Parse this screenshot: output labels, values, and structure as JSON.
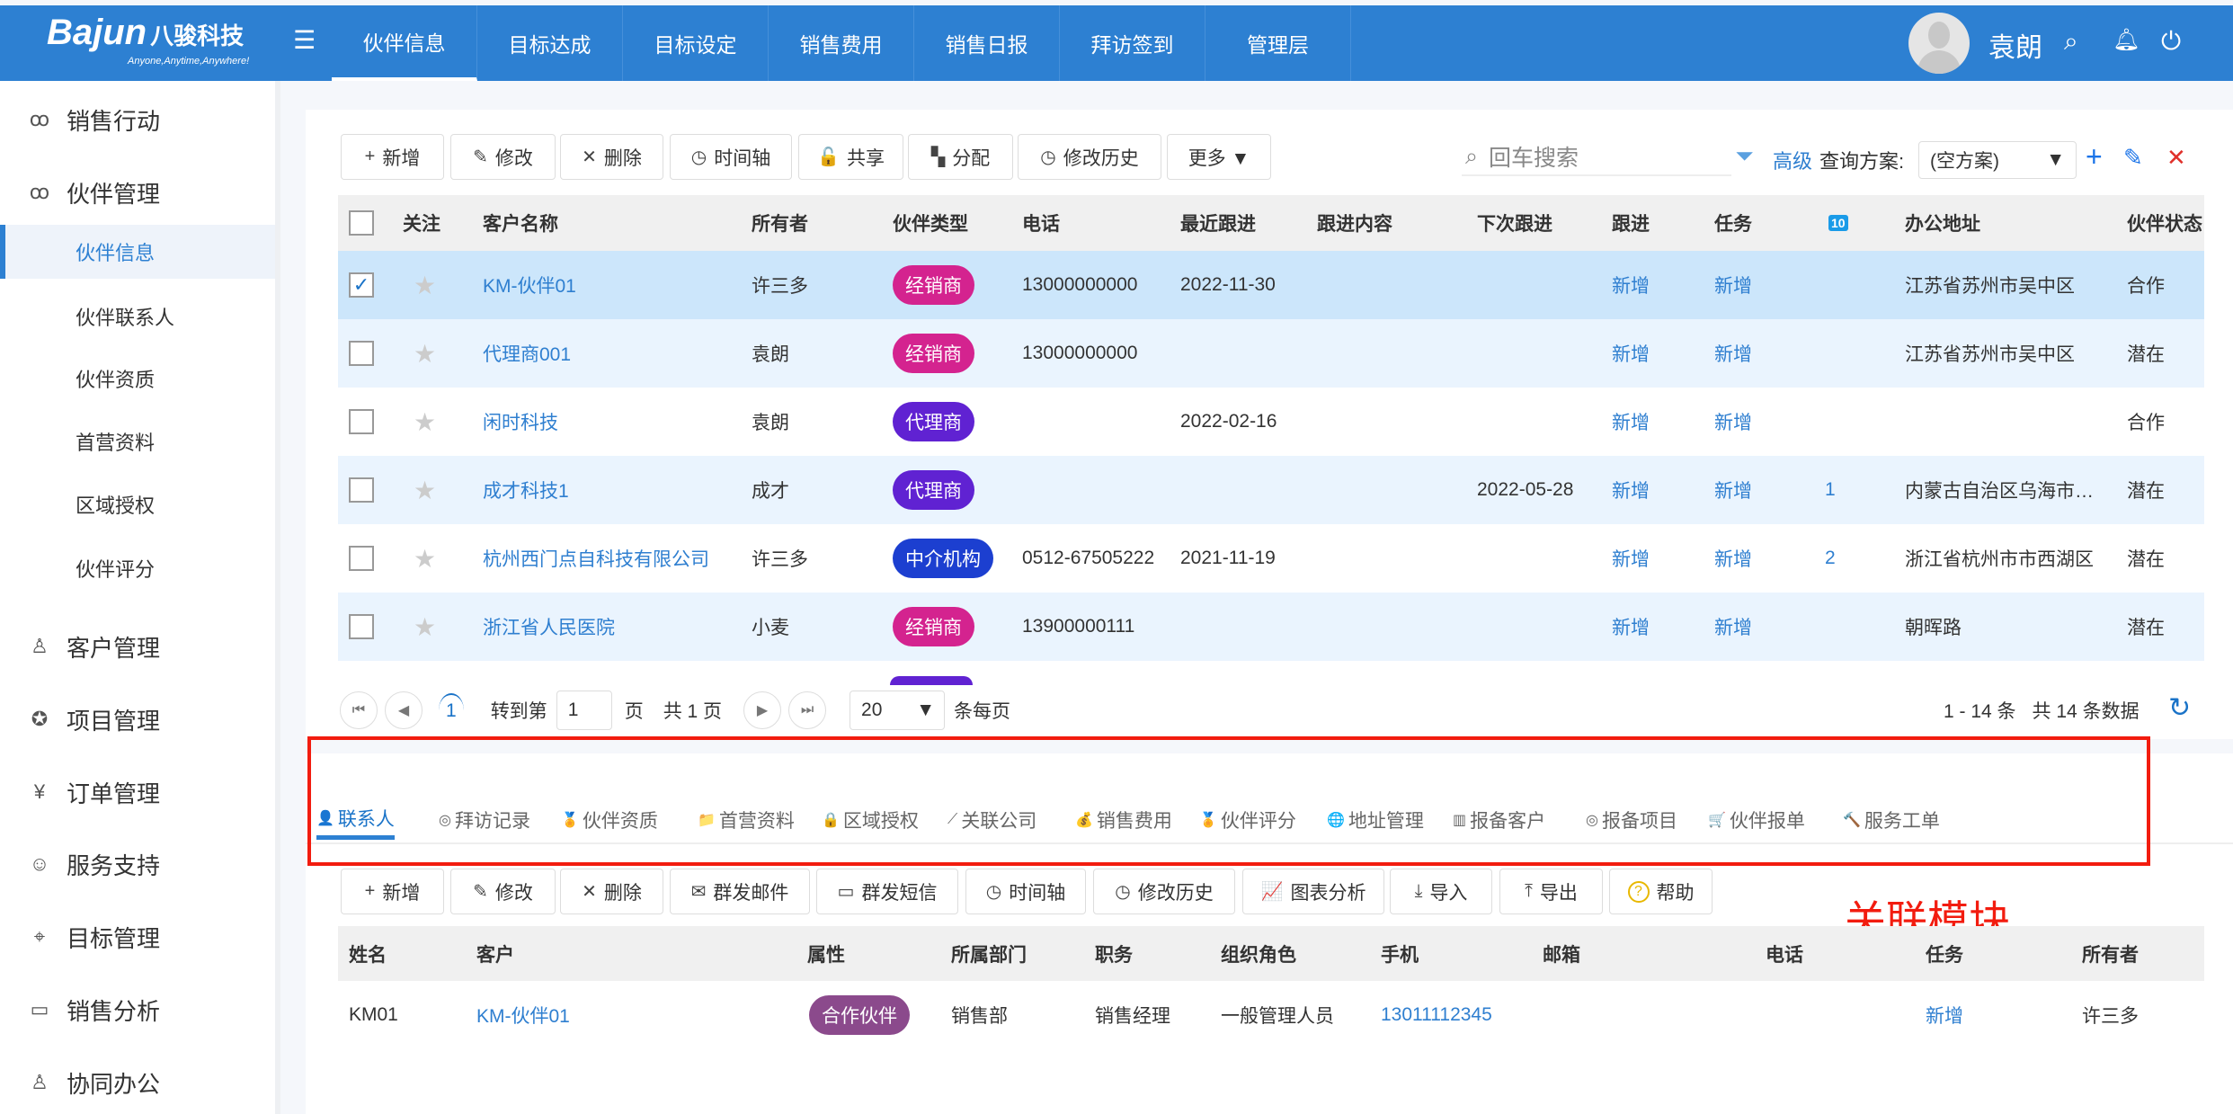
{
  "header": {
    "logo": "Bajun",
    "logo_cn": "八骏科技",
    "tagline": "Anyone,Anytime,Anywhere!",
    "user": "袁朗",
    "tabs": [
      "伙伴信息",
      "目标达成",
      "目标设定",
      "销售费用",
      "销售日报",
      "拜访签到",
      "管理层"
    ],
    "active_tab": 0
  },
  "sidebar": {
    "items": [
      {
        "label": "销售行动",
        "icon": "users-icon",
        "type": "group"
      },
      {
        "label": "伙伴管理",
        "icon": "partners-icon",
        "type": "group"
      },
      {
        "label": "伙伴信息",
        "type": "sub",
        "active": true
      },
      {
        "label": "伙伴联系人",
        "type": "sub"
      },
      {
        "label": "伙伴资质",
        "type": "sub"
      },
      {
        "label": "首营资料",
        "type": "sub"
      },
      {
        "label": "区域授权",
        "type": "sub"
      },
      {
        "label": "伙伴评分",
        "type": "sub"
      },
      {
        "label": "客户管理",
        "icon": "user-icon",
        "type": "group"
      },
      {
        "label": "项目管理",
        "icon": "award-icon",
        "type": "group"
      },
      {
        "label": "订单管理",
        "icon": "yen-icon",
        "type": "group"
      },
      {
        "label": "服务支持",
        "icon": "support-icon",
        "type": "group"
      },
      {
        "label": "目标管理",
        "icon": "target-icon",
        "type": "group"
      },
      {
        "label": "销售分析",
        "icon": "monitor-icon",
        "type": "group"
      },
      {
        "label": "协同办公",
        "icon": "person-icon",
        "type": "group"
      }
    ]
  },
  "toolbar": {
    "buttons": [
      {
        "label": "新增",
        "icon": "+"
      },
      {
        "label": "修改",
        "icon": "✎"
      },
      {
        "label": "删除",
        "icon": "✕"
      },
      {
        "label": "时间轴",
        "icon": "◷"
      },
      {
        "label": "共享",
        "icon": "🔓"
      },
      {
        "label": "分配",
        "icon": "▚"
      },
      {
        "label": "修改历史",
        "icon": "◷"
      },
      {
        "label": "更多 ▼",
        "icon": ""
      }
    ],
    "search_placeholder": "回车搜索",
    "advanced": "高级",
    "scheme_label": "查询方案:",
    "scheme_value": "(空方案)"
  },
  "table": {
    "columns": [
      "关注",
      "客户名称",
      "所有者",
      "伙伴类型",
      "电话",
      "最近跟进",
      "跟进内容",
      "下次跟进",
      "跟进",
      "任务",
      "10",
      "办公地址",
      "伙伴状态"
    ],
    "rows": [
      {
        "name": "KM-伙伴01",
        "owner": "许三多",
        "type": "经销商",
        "phone": "13000000000",
        "last": "2022-11-30",
        "content": "",
        "next": "",
        "follow": "新增",
        "task": "新增",
        "count": "",
        "addr": "江苏省苏州市吴中区",
        "status": "合作",
        "checked": true
      },
      {
        "name": "代理商001",
        "owner": "袁朗",
        "type": "经销商",
        "phone": "13000000000",
        "last": "",
        "content": "",
        "next": "",
        "follow": "新增",
        "task": "新增",
        "count": "",
        "addr": "江苏省苏州市吴中区",
        "status": "潜在"
      },
      {
        "name": "闲时科技",
        "owner": "袁朗",
        "type": "代理商",
        "phone": "",
        "last": "2022-02-16",
        "content": "",
        "next": "",
        "follow": "新增",
        "task": "新增",
        "count": "",
        "addr": "",
        "status": "合作"
      },
      {
        "name": "成才科技1",
        "owner": "成才",
        "type": "代理商",
        "phone": "",
        "last": "",
        "content": "",
        "next": "2022-05-28",
        "follow": "新增",
        "task": "新增",
        "count": "1",
        "addr": "内蒙古自治区乌海市…",
        "status": "潜在"
      },
      {
        "name": "杭州西门点自科技有限公司",
        "owner": "许三多",
        "type": "中介机构",
        "phone": "0512-67505222",
        "last": "2021-11-19",
        "content": "",
        "next": "",
        "follow": "新增",
        "task": "新增",
        "count": "2",
        "addr": "浙江省杭州市市西湖区",
        "status": "潜在"
      },
      {
        "name": "浙江省人民医院",
        "owner": "小麦",
        "type": "经销商",
        "phone": "13900000111",
        "last": "",
        "content": "",
        "next": "",
        "follow": "新增",
        "task": "新增",
        "count": "",
        "addr": "朝晖路",
        "status": "潜在"
      }
    ],
    "type_colors": {
      "经销商": "#d4238f",
      "代理商": "#6022d2",
      "中介机构": "#1c3fd0"
    }
  },
  "pagination": {
    "current": "1",
    "goto_label": "转到第",
    "goto_value": "1",
    "page_unit": "页",
    "total_pages": "共 1 页",
    "page_size": "20",
    "per_page_label": "条每页",
    "range": "1 - 14 条",
    "total": "共 14 条数据"
  },
  "subtabs": [
    {
      "label": "联系人",
      "icon": "👤"
    },
    {
      "label": "拜访记录",
      "icon": "◎"
    },
    {
      "label": "伙伴资质",
      "icon": "🏅"
    },
    {
      "label": "首营资料",
      "icon": "📁"
    },
    {
      "label": "区域授权",
      "icon": "🔒"
    },
    {
      "label": "关联公司",
      "icon": "⟋"
    },
    {
      "label": "销售费用",
      "icon": "💰"
    },
    {
      "label": "伙伴评分",
      "icon": "🏅"
    },
    {
      "label": "地址管理",
      "icon": "🌐"
    },
    {
      "label": "报备客户",
      "icon": "▥"
    },
    {
      "label": "报备项目",
      "icon": "◎"
    },
    {
      "label": "伙伴报单",
      "icon": "🛒"
    },
    {
      "label": "服务工单",
      "icon": "🔨"
    }
  ],
  "subtoolbar": [
    {
      "label": "新增",
      "icon": "+"
    },
    {
      "label": "修改",
      "icon": "✎"
    },
    {
      "label": "删除",
      "icon": "✕"
    },
    {
      "label": "群发邮件",
      "icon": "✉"
    },
    {
      "label": "群发短信",
      "icon": "▭"
    },
    {
      "label": "时间轴",
      "icon": "◷"
    },
    {
      "label": "修改历史",
      "icon": "◷"
    },
    {
      "label": "图表分析",
      "icon": "📈"
    },
    {
      "label": "导入",
      "icon": "⤓"
    },
    {
      "label": "导出",
      "icon": "⤒"
    },
    {
      "label": "帮助",
      "icon": "?"
    }
  ],
  "annotation": "关联模块",
  "subtable": {
    "columns": [
      "姓名",
      "客户",
      "属性",
      "所属部门",
      "职务",
      "组织角色",
      "手机",
      "邮箱",
      "电话",
      "任务",
      "所有者"
    ],
    "rows": [
      {
        "name": "KM01",
        "customer": "KM-伙伴01",
        "attr": "合作伙伴",
        "dept": "销售部",
        "title": "销售经理",
        "role": "一般管理人员",
        "mobile": "13011112345",
        "email": "",
        "phone": "",
        "task": "新增",
        "owner": "许三多"
      }
    ]
  }
}
